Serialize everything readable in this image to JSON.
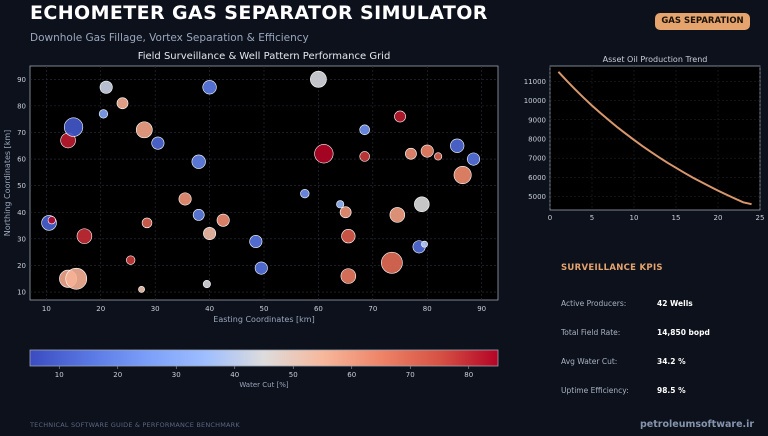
{
  "header": {
    "title": "ECHOMETER GAS SEPARATOR SIMULATOR",
    "subtitle": "Downhole Gas Fillage, Vortex Separation & Efficiency",
    "badge": "GAS SEPARATION"
  },
  "chart_data": [
    {
      "type": "scatter",
      "title": "Field Surveillance & Well Pattern Performance Grid",
      "xlabel": "Easting Coordinates [km]",
      "ylabel": "Northing Coordinates [km]",
      "xlim": [
        7,
        93
      ],
      "ylim": [
        7,
        95
      ],
      "xticks": [
        10,
        20,
        30,
        40,
        50,
        60,
        70,
        80,
        90
      ],
      "yticks": [
        10,
        20,
        30,
        40,
        50,
        60,
        70,
        80,
        90
      ],
      "colorbar": {
        "label": "Water Cut [%]",
        "range": [
          5,
          85
        ],
        "ticks": [
          10,
          20,
          30,
          40,
          50,
          60,
          70,
          80
        ],
        "colormap": "coolwarm"
      },
      "points": [
        {
          "x": 10.5,
          "y": 36,
          "size": 12,
          "water_cut": 10
        },
        {
          "x": 11,
          "y": 37,
          "size": 6,
          "water_cut": 85
        },
        {
          "x": 14,
          "y": 67,
          "size": 12,
          "water_cut": 82
        },
        {
          "x": 14,
          "y": 15,
          "size": 14,
          "water_cut": 58
        },
        {
          "x": 15,
          "y": 72,
          "size": 15,
          "water_cut": 8
        },
        {
          "x": 15.5,
          "y": 15,
          "size": 17,
          "water_cut": 56
        },
        {
          "x": 17,
          "y": 31,
          "size": 12,
          "water_cut": 80
        },
        {
          "x": 20.5,
          "y": 77,
          "size": 7,
          "water_cut": 27
        },
        {
          "x": 21,
          "y": 87,
          "size": 10,
          "water_cut": 42
        },
        {
          "x": 24,
          "y": 81,
          "size": 9,
          "water_cut": 57
        },
        {
          "x": 25.5,
          "y": 22,
          "size": 7,
          "water_cut": 78
        },
        {
          "x": 27.5,
          "y": 11,
          "size": 5,
          "water_cut": 52
        },
        {
          "x": 28,
          "y": 71,
          "size": 13,
          "water_cut": 59
        },
        {
          "x": 28.5,
          "y": 36,
          "size": 8,
          "water_cut": 72
        },
        {
          "x": 30.5,
          "y": 66,
          "size": 10,
          "water_cut": 12
        },
        {
          "x": 35.5,
          "y": 45,
          "size": 10,
          "water_cut": 62
        },
        {
          "x": 38,
          "y": 59,
          "size": 11,
          "water_cut": 18
        },
        {
          "x": 38,
          "y": 39,
          "size": 9,
          "water_cut": 17
        },
        {
          "x": 39.5,
          "y": 13,
          "size": 6,
          "water_cut": 44
        },
        {
          "x": 40,
          "y": 87,
          "size": 11,
          "water_cut": 16
        },
        {
          "x": 40,
          "y": 32,
          "size": 10,
          "water_cut": 53
        },
        {
          "x": 42.5,
          "y": 37,
          "size": 10,
          "water_cut": 63
        },
        {
          "x": 48.5,
          "y": 29,
          "size": 10,
          "water_cut": 15
        },
        {
          "x": 49.5,
          "y": 19,
          "size": 10,
          "water_cut": 14
        },
        {
          "x": 57.5,
          "y": 47,
          "size": 7,
          "water_cut": 22
        },
        {
          "x": 60,
          "y": 90,
          "size": 13,
          "water_cut": 44
        },
        {
          "x": 61,
          "y": 62,
          "size": 15,
          "water_cut": 85
        },
        {
          "x": 64,
          "y": 43,
          "size": 6,
          "water_cut": 33
        },
        {
          "x": 65,
          "y": 40,
          "size": 9,
          "water_cut": 62
        },
        {
          "x": 65.5,
          "y": 31,
          "size": 11,
          "water_cut": 73
        },
        {
          "x": 65.5,
          "y": 16,
          "size": 12,
          "water_cut": 67
        },
        {
          "x": 68.5,
          "y": 71,
          "size": 8,
          "water_cut": 22
        },
        {
          "x": 68.5,
          "y": 61,
          "size": 8,
          "water_cut": 78
        },
        {
          "x": 73.5,
          "y": 21,
          "size": 17,
          "water_cut": 70
        },
        {
          "x": 74.5,
          "y": 39,
          "size": 12,
          "water_cut": 60
        },
        {
          "x": 75,
          "y": 76,
          "size": 9,
          "water_cut": 82
        },
        {
          "x": 77,
          "y": 62,
          "size": 9,
          "water_cut": 63
        },
        {
          "x": 78.5,
          "y": 27,
          "size": 10,
          "water_cut": 13
        },
        {
          "x": 79,
          "y": 43,
          "size": 12,
          "water_cut": 45
        },
        {
          "x": 79.5,
          "y": 28,
          "size": 5,
          "water_cut": 38
        },
        {
          "x": 80,
          "y": 63,
          "size": 10,
          "water_cut": 65
        },
        {
          "x": 82,
          "y": 61,
          "size": 6,
          "water_cut": 72
        },
        {
          "x": 85.5,
          "y": 65,
          "size": 11,
          "water_cut": 12
        },
        {
          "x": 86.5,
          "y": 54,
          "size": 14,
          "water_cut": 64
        },
        {
          "x": 88.5,
          "y": 60,
          "size": 10,
          "water_cut": 14
        }
      ]
    },
    {
      "type": "line",
      "title": "Asset Oil Production Trend",
      "xlabel": "",
      "ylabel": "",
      "xlim": [
        0,
        25
      ],
      "ylim": [
        4300,
        11800
      ],
      "xticks": [
        0,
        5,
        10,
        15,
        20,
        25
      ],
      "yticks": [
        5000,
        6000,
        7000,
        8000,
        9000,
        10000,
        11000
      ],
      "series": [
        {
          "x": [
            1,
            2,
            3,
            4,
            5,
            6,
            7,
            8,
            9,
            10,
            11,
            12,
            13,
            14,
            15,
            16,
            17,
            18,
            19,
            20,
            21,
            22,
            23,
            24
          ],
          "values": [
            11500,
            11030,
            10580,
            10150,
            9740,
            9350,
            8980,
            8620,
            8280,
            7950,
            7630,
            7330,
            7040,
            6760,
            6500,
            6240,
            5990,
            5760,
            5530,
            5310,
            5100,
            4900,
            4700,
            4600
          ]
        }
      ]
    }
  ],
  "kpis": {
    "title": "SURVEILLANCE KPIS",
    "items": [
      {
        "label": "Active Producers:",
        "value": "42 Wells"
      },
      {
        "label": "Total Field Rate:",
        "value": "14,850 bopd"
      },
      {
        "label": "Avg Water Cut:",
        "value": "34.2 %"
      },
      {
        "label": "Uptime Efficiency:",
        "value": "98.5 %"
      }
    ]
  },
  "footer": {
    "left": "TECHNICAL SOFTWARE GUIDE & PERFORMANCE BENCHMARK",
    "right": "petroleumsoftware.ir"
  },
  "colors": {
    "accent": "#e5a36d",
    "background": "#0c111b",
    "line": "#d9986b"
  }
}
